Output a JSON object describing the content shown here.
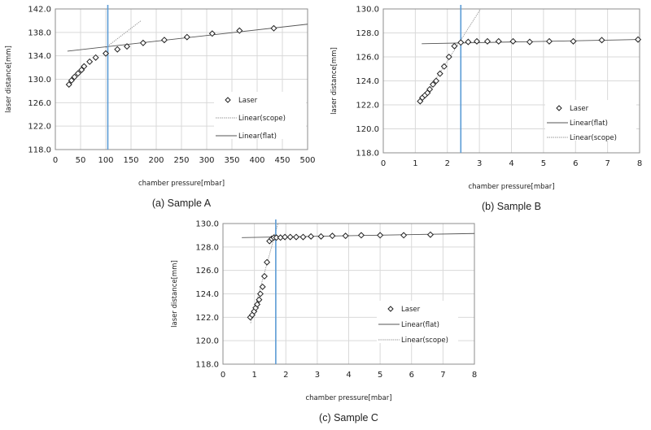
{
  "chart_data": [
    {
      "type": "scatter",
      "caption": "(a) Sample A",
      "xlabel": "chamber pressure[mbar]",
      "ylabel": "laser distance[mm]",
      "xlim": [
        0,
        500
      ],
      "ylim": [
        118,
        142
      ],
      "xticks": [
        0,
        50,
        100,
        150,
        200,
        250,
        300,
        350,
        400,
        450,
        500
      ],
      "yticks": [
        118.0,
        122.0,
        126.0,
        130.0,
        134.0,
        138.0,
        142.0
      ],
      "ytick_decimals": 1,
      "grid": true,
      "legend": [
        "Laser",
        "Linear(scope)",
        "Linear(flat)"
      ],
      "legend_position": "right-middle",
      "series": [
        {
          "name": "Laser",
          "marker": "diamond",
          "x": [
            27,
            32,
            38,
            45,
            52,
            57,
            68,
            80,
            100,
            123,
            142,
            174,
            216,
            261,
            311,
            365,
            433
          ],
          "y": [
            129.1,
            129.8,
            130.4,
            131.0,
            131.6,
            132.2,
            133.0,
            133.7,
            134.4,
            135.1,
            135.6,
            136.2,
            136.7,
            137.2,
            137.8,
            138.3,
            138.7
          ]
        },
        {
          "name": "Linear(scope)",
          "style": "dotted",
          "x": [
            100,
            170
          ],
          "y": [
            135.4,
            140.0
          ]
        },
        {
          "name": "Linear(flat)",
          "style": "solid",
          "x": [
            24,
            500
          ],
          "y": [
            134.8,
            139.4
          ]
        }
      ],
      "vline": {
        "x": 104,
        "color": "#5b9bd5"
      }
    },
    {
      "type": "scatter",
      "caption": "(b) Sample B",
      "xlabel": "chamber pressure[mbar]",
      "ylabel": "laser distance[mm]",
      "xlim": [
        0,
        8
      ],
      "ylim": [
        118,
        130
      ],
      "xticks": [
        0,
        1,
        2,
        3,
        4,
        5,
        6,
        7,
        8
      ],
      "yticks": [
        118.0,
        120.0,
        122.0,
        124.0,
        126.0,
        128.0,
        130.0
      ],
      "ytick_decimals": 1,
      "grid": true,
      "legend": [
        "Laser",
        "Linear(flat)",
        "Linear(scope)"
      ],
      "legend_position": "right-middle",
      "series": [
        {
          "name": "Laser",
          "marker": "diamond",
          "x": [
            1.15,
            1.22,
            1.3,
            1.38,
            1.45,
            1.55,
            1.65,
            1.77,
            1.9,
            2.05,
            2.22,
            2.42,
            2.65,
            2.92,
            3.25,
            3.6,
            4.05,
            4.57,
            5.18,
            5.93,
            6.82,
            7.95
          ],
          "y": [
            122.3,
            122.6,
            122.8,
            123.0,
            123.3,
            123.7,
            124.0,
            124.6,
            125.2,
            126.0,
            126.9,
            127.2,
            127.25,
            127.3,
            127.3,
            127.3,
            127.3,
            127.25,
            127.3,
            127.3,
            127.4,
            127.45
          ]
        },
        {
          "name": "Linear(flat)",
          "style": "solid",
          "x": [
            1.2,
            8
          ],
          "y": [
            127.1,
            127.45
          ]
        },
        {
          "name": "Linear(scope)",
          "style": "dotted",
          "x": [
            1.15,
            3.04
          ],
          "y": [
            122.1,
            130.0
          ]
        }
      ],
      "vline": {
        "x": 2.42,
        "color": "#5b9bd5"
      }
    },
    {
      "type": "scatter",
      "caption": "(c) Sample C",
      "xlabel": "chamber pressure[mbar]",
      "ylabel": "laser distance[mm]",
      "xlim": [
        0,
        8
      ],
      "ylim": [
        118,
        130
      ],
      "xticks": [
        0,
        1,
        2,
        3,
        4,
        5,
        6,
        7,
        8
      ],
      "yticks": [
        118.0,
        120.0,
        122.0,
        124.0,
        126.0,
        128.0,
        130.0
      ],
      "ytick_decimals": 1,
      "grid": true,
      "legend": [
        "Laser",
        "Linear(flat)",
        "Linear(scope)"
      ],
      "legend_position": "right-middle",
      "series": [
        {
          "name": "Laser",
          "marker": "diamond",
          "x": [
            0.87,
            0.93,
            0.99,
            1.04,
            1.09,
            1.15,
            1.19,
            1.26,
            1.32,
            1.4,
            1.48,
            1.55,
            1.62,
            1.7,
            1.83,
            1.97,
            2.14,
            2.33,
            2.55,
            2.8,
            3.12,
            3.48,
            3.9,
            4.4,
            5.0,
            5.75,
            6.6
          ],
          "y": [
            122.0,
            122.2,
            122.5,
            122.8,
            123.1,
            123.5,
            124.0,
            124.6,
            125.5,
            126.7,
            128.5,
            128.7,
            128.8,
            128.8,
            128.8,
            128.85,
            128.85,
            128.85,
            128.85,
            128.9,
            128.9,
            128.95,
            128.95,
            129.0,
            129.0,
            129.0,
            129.05
          ]
        },
        {
          "name": "Linear(flat)",
          "style": "solid",
          "x": [
            0.6,
            8
          ],
          "y": [
            128.8,
            129.15
          ]
        },
        {
          "name": "Linear(scope)",
          "style": "dotted",
          "x": [
            0.88,
            1.75
          ],
          "y": [
            121.5,
            130.0
          ]
        }
      ],
      "vline": {
        "x": 1.68,
        "color": "#5b9bd5"
      }
    }
  ]
}
